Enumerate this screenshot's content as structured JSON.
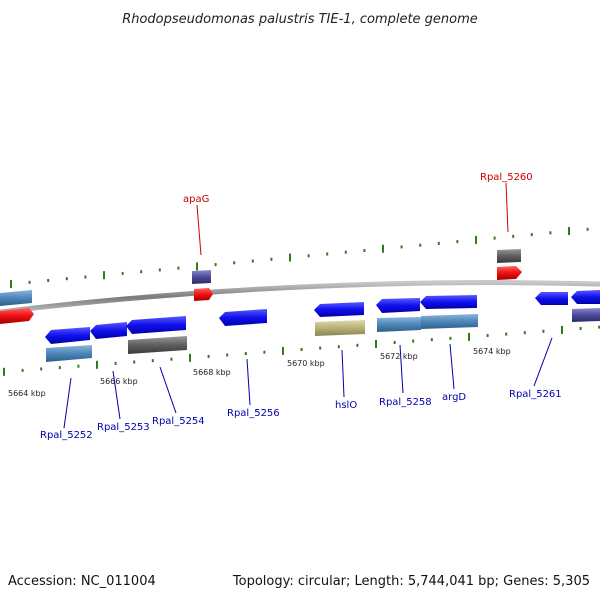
{
  "title": "Rhodopseudomonas palustris TIE-1, complete genome",
  "footer": {
    "accession": "Accession: NC_011004",
    "topology": "Topology: circular; Length: 5,744,041 bp; Genes: 5,305"
  },
  "colors": {
    "backbone": "#8a8a8a",
    "tick_green": "#2e7d1a",
    "gene_blue": "#1010ee",
    "gene_steelblue": "#4d86b8",
    "gene_gray": "#5e5e5e",
    "gene_red": "#ee1010",
    "gene_purple": "#4a4a9a",
    "gene_olive": "#b8b078",
    "label_blue": "#0000aa",
    "label_red": "#cc0000"
  },
  "scale_labels": [
    "5664 kbp",
    "5666 kbp",
    "5668 kbp",
    "5670 kbp",
    "5672 kbp",
    "5674 kbp"
  ],
  "upper_labels": [
    {
      "text": "apaG",
      "color": "red"
    },
    {
      "text": "Rpal_5260",
      "color": "red"
    }
  ],
  "lower_labels": [
    {
      "text": "Rpal_5252"
    },
    {
      "text": "Rpal_5253"
    },
    {
      "text": "Rpal_5254"
    },
    {
      "text": "Rpal_5256"
    },
    {
      "text": "hslO"
    },
    {
      "text": "Rpal_5258"
    },
    {
      "text": "argD"
    },
    {
      "text": "Rpal_5261"
    }
  ]
}
